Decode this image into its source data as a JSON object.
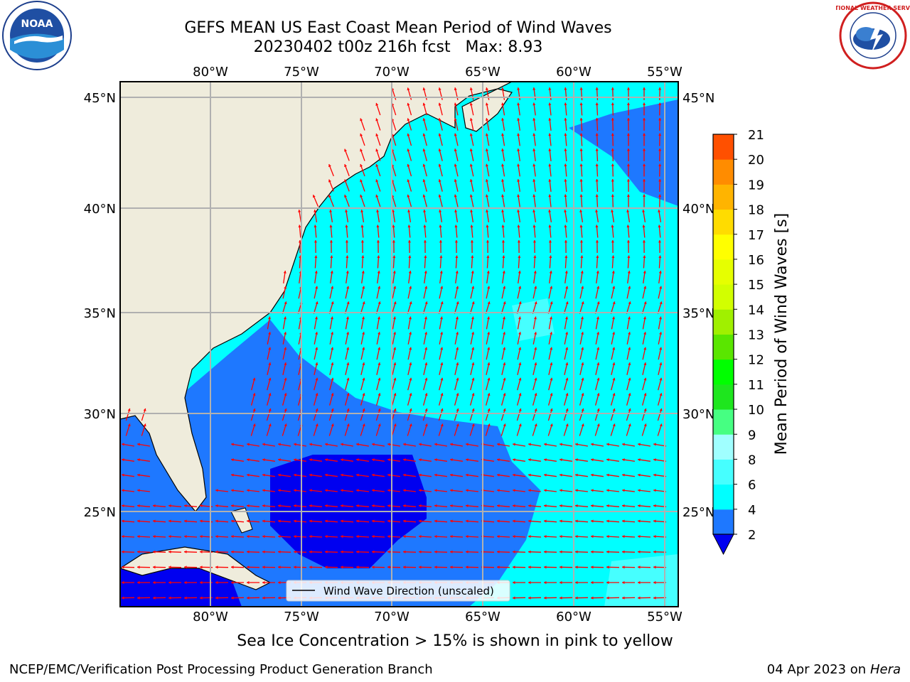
{
  "header": {
    "title_line1": "GEFS MEAN US East Coast Mean Period of Wind Waves",
    "title_line2": "20230402 t00z 216h fcst   Max: 8.93"
  },
  "logos": {
    "left": {
      "text": "NOAA",
      "icon": "noaa-logo"
    },
    "right": {
      "text": "NATIONAL WEATHER SERVICE",
      "icon": "nws-logo"
    }
  },
  "map": {
    "lon_ticks": [
      "80°W",
      "75°W",
      "70°W",
      "65°W",
      "60°W",
      "55°W"
    ],
    "lat_ticks": [
      "45°N",
      "40°N",
      "35°N",
      "30°N",
      "25°N"
    ],
    "legend_label": "Wind Wave Direction (unscaled)",
    "colors": {
      "land": "#efecdc",
      "ocean_2_4": "#1e78ff",
      "ocean_4_6": "#00ffff",
      "ocean_lt_2": "#0000f0",
      "ocean_6_8": "#46ffff",
      "arrows": "#ff0000",
      "grid": "#b0b0b0"
    }
  },
  "colorbar": {
    "label": "Mean Period of Wind Waves [s]",
    "levels": [
      "2",
      "4",
      "6",
      "8",
      "9",
      "10",
      "11",
      "12",
      "13",
      "14",
      "15",
      "16",
      "17",
      "18",
      "19",
      "20",
      "21"
    ],
    "colors": [
      "#1e78ff",
      "#00ffff",
      "#46ffff",
      "#a0ffff",
      "#46ff82",
      "#1ee61e",
      "#00ff00",
      "#5ae600",
      "#a0f000",
      "#d2ff00",
      "#e6ff00",
      "#ffff00",
      "#ffdc00",
      "#ffb400",
      "#ff8c00",
      "#ff5000",
      "#ff1400",
      "#ff0000"
    ],
    "under_color": "#0000f0"
  },
  "subtitle": "Sea Ice Concentration > 15% is shown in pink to yellow",
  "footer": {
    "left": "NCEP/EMC/Verification Post Processing Product Generation Branch",
    "right_date": "04 Apr 2023 on ",
    "right_host": "Hera"
  }
}
